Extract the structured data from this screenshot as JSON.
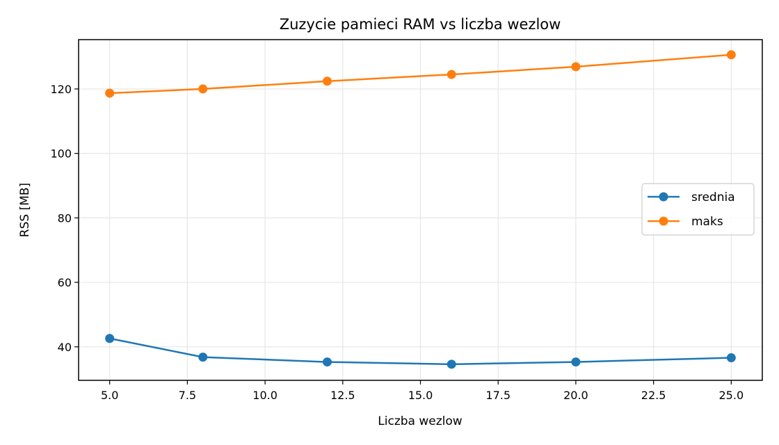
{
  "chart_data": {
    "type": "line",
    "title": "Zuzycie pamieci RAM vs liczba wezlow",
    "xlabel": "Liczba wezlow",
    "ylabel": "RSS [MB]",
    "x": [
      5,
      8,
      12,
      16,
      20,
      25
    ],
    "series": [
      {
        "name": "srednia",
        "color": "#1f77b4",
        "marker": "circle",
        "values": [
          42.6,
          36.8,
          35.3,
          34.6,
          35.3,
          36.6
        ]
      },
      {
        "name": "maks",
        "color": "#ff7f0e",
        "marker": "circle",
        "values": [
          118.7,
          120.0,
          122.4,
          124.5,
          126.9,
          130.6
        ]
      }
    ],
    "xlim": [
      4.0,
      26.0
    ],
    "ylim": [
      29.6,
      135.3
    ],
    "xticks": [
      5.0,
      7.5,
      10.0,
      12.5,
      15.0,
      17.5,
      20.0,
      22.5,
      25.0
    ],
    "xtick_labels": [
      "5.0",
      "7.5",
      "10.0",
      "12.5",
      "15.0",
      "17.5",
      "20.0",
      "22.5",
      "25.0"
    ],
    "yticks": [
      40,
      60,
      80,
      100,
      120
    ],
    "ytick_labels": [
      "40",
      "60",
      "80",
      "100",
      "120"
    ],
    "grid": true,
    "legend_position": "center right"
  }
}
